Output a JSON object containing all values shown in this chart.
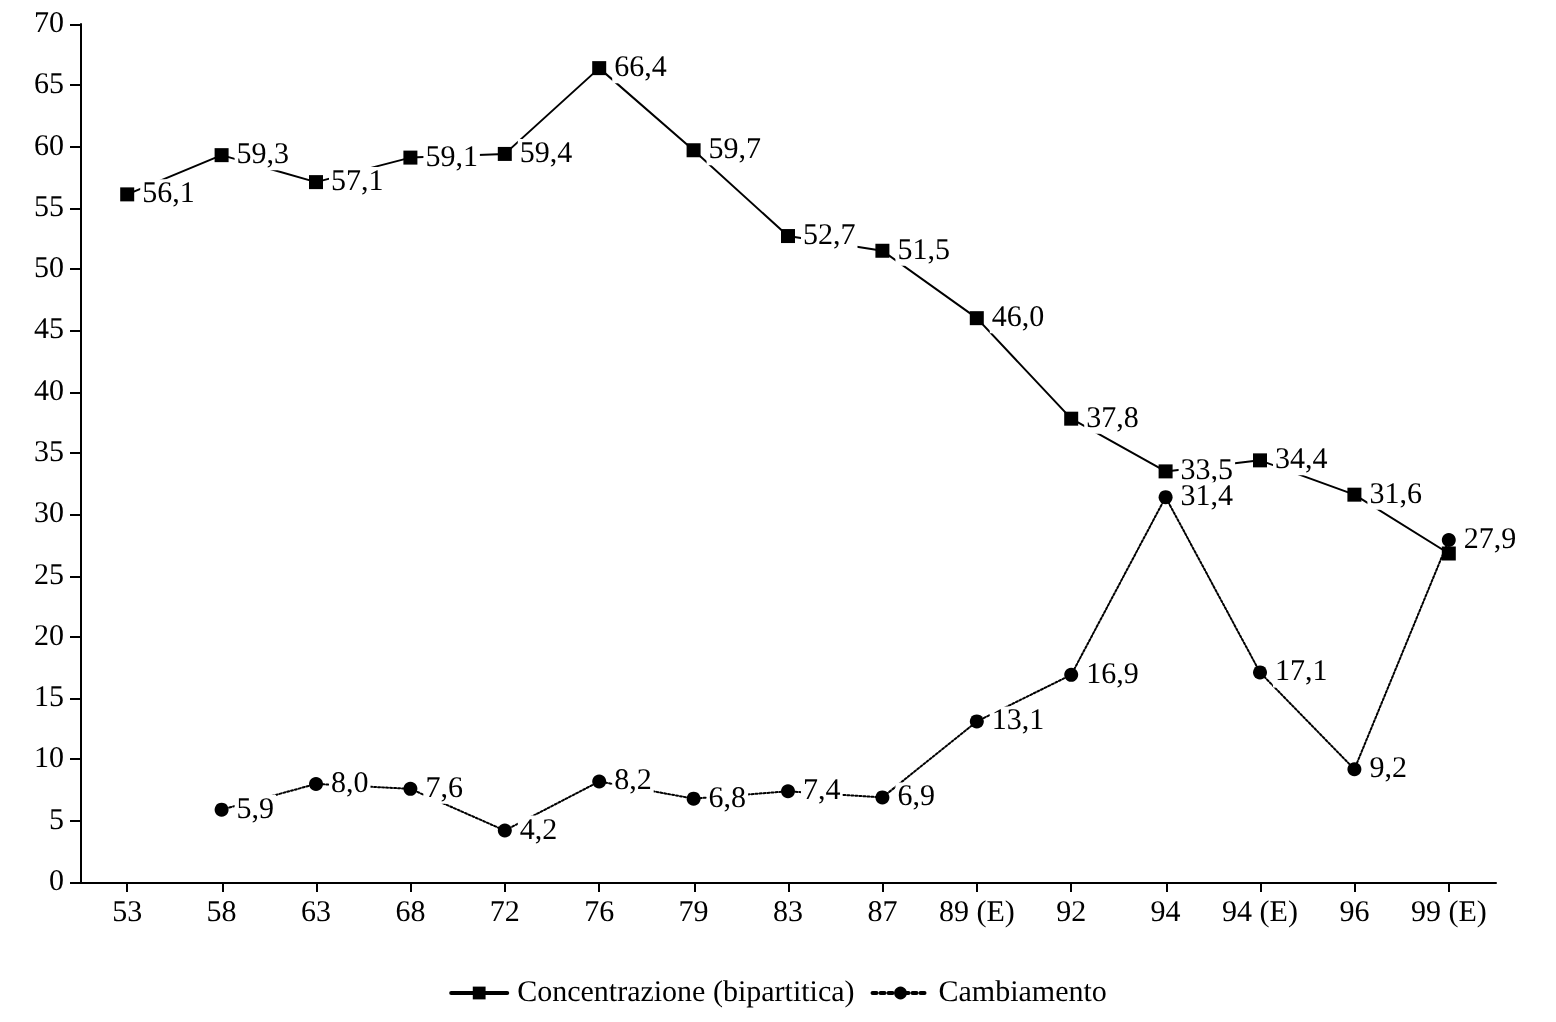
{
  "chart_data": {
    "type": "line",
    "categories": [
      "53",
      "58",
      "63",
      "68",
      "72",
      "76",
      "79",
      "83",
      "87",
      "89 (E)",
      "92",
      "94",
      "94 (E)",
      "96",
      "99 (E)"
    ],
    "series": [
      {
        "name": "Concentrazione (bipartitica)",
        "color": "#000000",
        "marker": "square",
        "line_style": "solid",
        "values": [
          56.1,
          59.3,
          57.1,
          59.1,
          59.4,
          66.4,
          59.7,
          52.7,
          51.5,
          46.0,
          37.8,
          33.5,
          34.4,
          31.6,
          26.8
        ],
        "value_labels": [
          "56,1",
          "59,3",
          "57,1",
          "59,1",
          "59,4",
          "66,4",
          "59,7",
          "52,7",
          "51,5",
          "46,0",
          "37,8",
          "33,5",
          "34,4",
          "31,6",
          null
        ]
      },
      {
        "name": "Cambiamento",
        "color": "#000000",
        "marker": "circle",
        "line_style": "dotted",
        "values": [
          null,
          5.9,
          8.0,
          7.6,
          4.2,
          8.2,
          6.8,
          7.4,
          6.9,
          13.1,
          16.9,
          31.4,
          17.1,
          9.2,
          27.9
        ],
        "value_labels": [
          null,
          "5,9",
          "8,0",
          "7,6",
          "4,2",
          "8,2",
          "6,8",
          "7,4",
          "6,9",
          "13,1",
          "16,9",
          "31,4",
          "17,1",
          "9,2",
          "27,9"
        ]
      }
    ],
    "ylim": [
      0,
      70
    ],
    "yticks": [
      0,
      5,
      10,
      15,
      20,
      25,
      30,
      35,
      40,
      45,
      50,
      55,
      60,
      65,
      70
    ],
    "grid": false,
    "legend": "bottom"
  }
}
